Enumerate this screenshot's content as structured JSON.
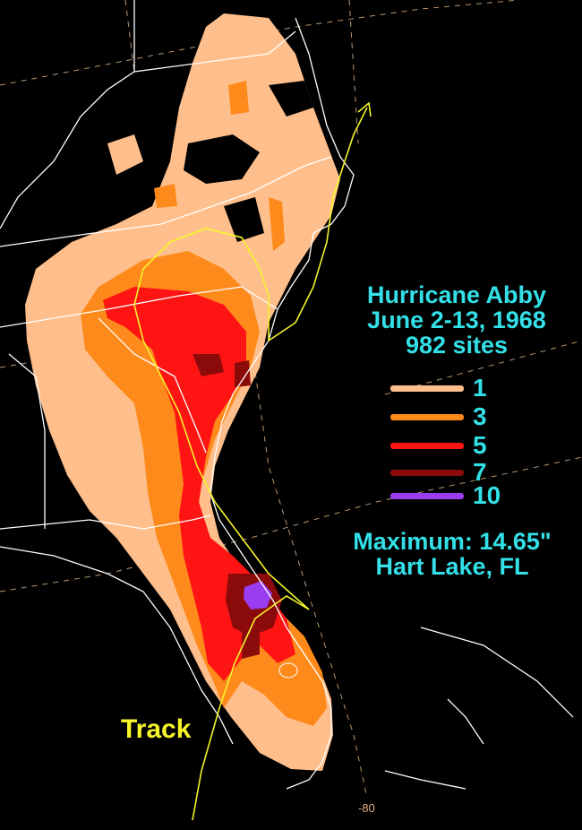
{
  "title": {
    "storm": "Hurricane Abby",
    "dates": "June 2-13, 1968",
    "sites": "982 sites"
  },
  "legend": [
    {
      "value": "1",
      "color": "#ffbf8c"
    },
    {
      "value": "3",
      "color": "#ff8a1c"
    },
    {
      "value": "5",
      "color": "#ff1414"
    },
    {
      "value": "7",
      "color": "#8b0a0a"
    },
    {
      "value": "10",
      "color": "#9a3cf0"
    }
  ],
  "maximum": {
    "label": "Maximum:  14.65\"",
    "location": "Hart Lake, FL"
  },
  "track_label": "Track",
  "longitude_label": "-80",
  "colors": {
    "background": "#000000",
    "text": "#33e0e8",
    "track": "#f5f52a",
    "boundaries": "#ffffff",
    "graticule": "#e0b080"
  }
}
